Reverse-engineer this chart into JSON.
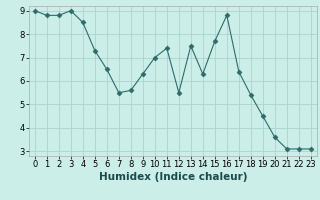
{
  "x": [
    0,
    1,
    2,
    3,
    4,
    5,
    6,
    7,
    8,
    9,
    10,
    11,
    12,
    13,
    14,
    15,
    16,
    17,
    18,
    19,
    20,
    21,
    22,
    23
  ],
  "y": [
    9.0,
    8.8,
    8.8,
    9.0,
    8.5,
    7.3,
    6.5,
    5.5,
    5.6,
    6.3,
    7.0,
    7.4,
    5.5,
    7.5,
    6.3,
    7.7,
    8.8,
    6.4,
    5.4,
    4.5,
    3.6,
    3.1,
    3.1,
    3.1
  ],
  "xlabel": "Humidex (Indice chaleur)",
  "ylim_min": 2.8,
  "ylim_max": 9.2,
  "xlim_min": -0.5,
  "xlim_max": 23.5,
  "yticks": [
    3,
    4,
    5,
    6,
    7,
    8,
    9
  ],
  "xticks": [
    0,
    1,
    2,
    3,
    4,
    5,
    6,
    7,
    8,
    9,
    10,
    11,
    12,
    13,
    14,
    15,
    16,
    17,
    18,
    19,
    20,
    21,
    22,
    23
  ],
  "line_color": "#2e6b6b",
  "marker": "D",
  "marker_size": 2.5,
  "bg_color": "#cceee8",
  "grid_color": "#aad4cc",
  "tick_label_fontsize": 6,
  "xlabel_fontsize": 7.5,
  "spine_color": "#aaaaaa"
}
